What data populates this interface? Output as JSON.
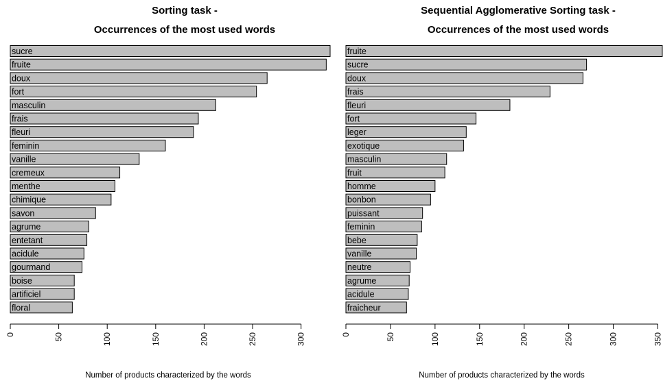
{
  "chart_data": [
    {
      "type": "bar",
      "orientation": "horizontal",
      "title": "Sorting task -",
      "subtitle": "Occurrences of the most used words",
      "xlabel": "Number of products characterized by the words",
      "xlim": [
        0,
        330
      ],
      "ticks": [
        0,
        50,
        100,
        150,
        200,
        250,
        300
      ],
      "categories": [
        "sucre",
        "fruite",
        "doux",
        "fort",
        "masculin",
        "frais",
        "fleuri",
        "feminin",
        "vanille",
        "cremeux",
        "menthe",
        "chimique",
        "savon",
        "agrume",
        "entetant",
        "acidule",
        "gourmand",
        "boise",
        "artificiel",
        "floral"
      ],
      "values": [
        331,
        326,
        265,
        254,
        212,
        194,
        189,
        160,
        133,
        113,
        108,
        104,
        88,
        81,
        79,
        76,
        74,
        66,
        66,
        64
      ]
    },
    {
      "type": "bar",
      "orientation": "horizontal",
      "title": "Sequential Agglomerative Sorting task -",
      "subtitle": "Occurrences of the most used words",
      "xlabel": "Number of products characterized by the words",
      "xlim": [
        0,
        355
      ],
      "ticks": [
        0,
        50,
        100,
        150,
        200,
        250,
        300,
        350
      ],
      "categories": [
        "fruite",
        "sucre",
        "doux",
        "frais",
        "fleuri",
        "fort",
        "leger",
        "exotique",
        "masculin",
        "fruit",
        "homme",
        "bonbon",
        "puissant",
        "feminin",
        "bebe",
        "vanille",
        "neutre",
        "agrume",
        "acidule",
        "fraicheur"
      ],
      "values": [
        355,
        270,
        266,
        229,
        184,
        146,
        135,
        132,
        113,
        111,
        100,
        95,
        86,
        85,
        80,
        79,
        72,
        71,
        70,
        68
      ]
    }
  ]
}
